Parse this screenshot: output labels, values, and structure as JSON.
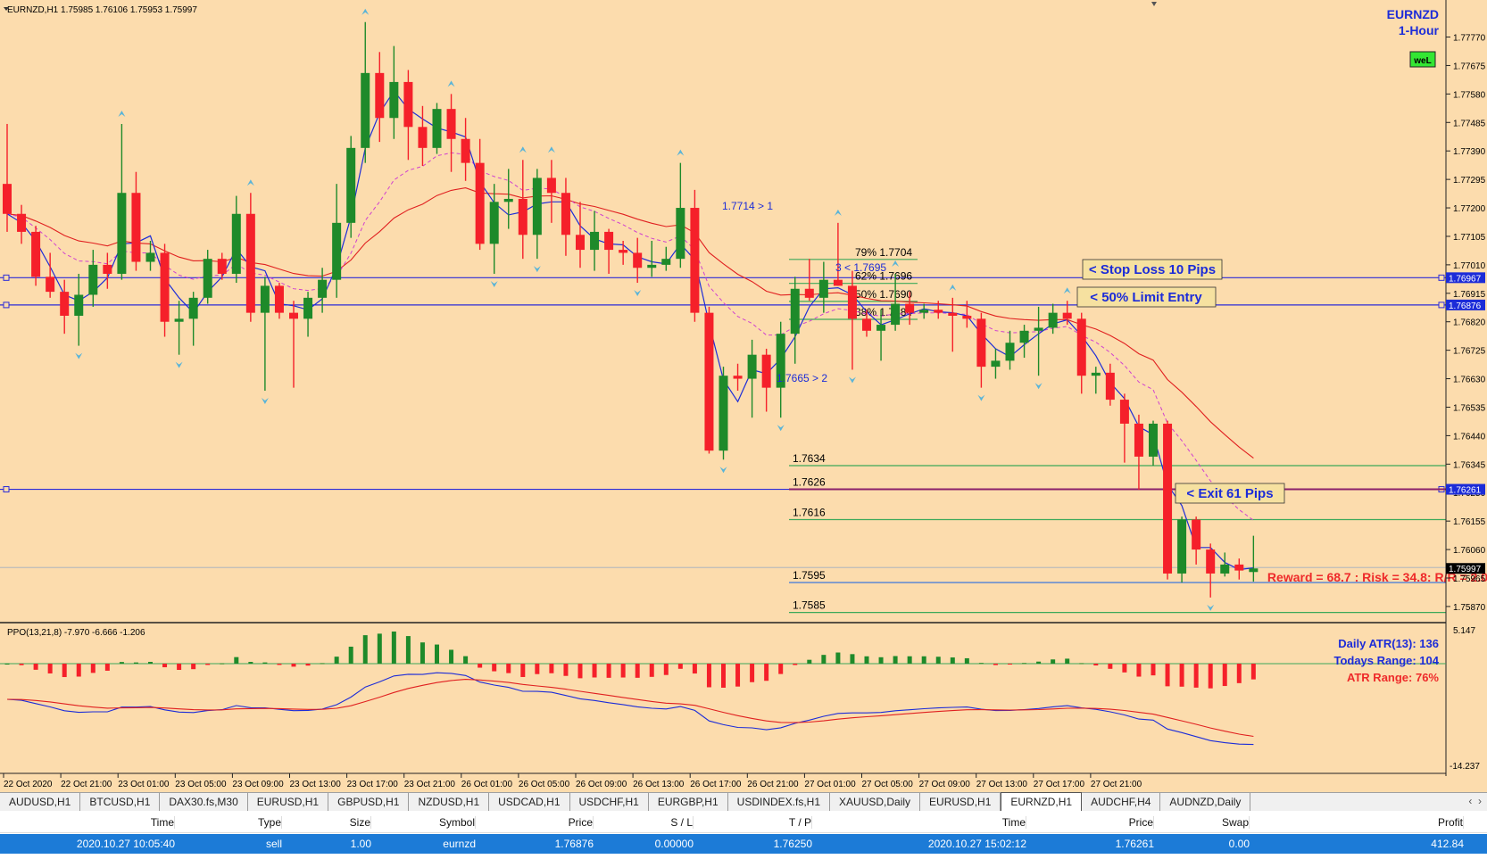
{
  "header": {
    "symbol_info": "EURNZD,H1  1.75985 1.76106 1.75953 1.75997",
    "symbol": "EURNZD",
    "timeframe": "1-Hour",
    "badge": "weL"
  },
  "price_axis": [
    "1.77770",
    "1.77675",
    "1.77580",
    "1.77485",
    "1.77390",
    "1.77295",
    "1.77200",
    "1.77105",
    "1.77010",
    "1.76915",
    "1.76820",
    "1.76725",
    "1.76630",
    "1.76535",
    "1.76440",
    "1.76345",
    "1.76250",
    "1.76155",
    "1.76060",
    "1.75965",
    "1.75870"
  ],
  "price_tags": [
    {
      "label": "1.76967",
      "price": 1.76967,
      "color": "#1c2cd8"
    },
    {
      "label": "1.76876",
      "price": 1.76876,
      "color": "#1c2cd8"
    },
    {
      "label": "1.76261",
      "price": 1.76261,
      "color": "#1c2cd8"
    },
    {
      "label": "1.75997",
      "price": 1.75997,
      "color": "#000000"
    }
  ],
  "horizontal_lines": [
    {
      "price": 1.76967,
      "color": "#2b2bd8",
      "style": "solid",
      "full": true
    },
    {
      "price": 1.76876,
      "color": "#2b2bd8",
      "style": "solid",
      "full": true
    },
    {
      "price": 1.76261,
      "color": "#2b2bd8",
      "style": "solid",
      "full": true
    },
    {
      "price": 1.76,
      "color": "#bbbbbb",
      "style": "solid",
      "full": true
    }
  ],
  "annotations": {
    "stop_loss": "< Stop Loss 10 Pips",
    "limit_entry": "< 50% Limit Entry",
    "exit": "< Exit 61 Pips",
    "reward_risk": "Reward = 68.7 : Risk = 34.8: R/R = 2.0",
    "high_label": "1.7714 > 1",
    "low_label": "1.7665 > 2",
    "swing_label": "3 < 1.7695"
  },
  "fib_levels": [
    {
      "label": "79% 1.7704",
      "price": 1.7704
    },
    {
      "label": "62% 1.7696",
      "price": 1.7696
    },
    {
      "label": "50% 1.7690",
      "price": 1.769
    },
    {
      "label": "38% 1.7684",
      "price": 1.7684
    }
  ],
  "targets": [
    {
      "label": "1.7634",
      "price": 1.7634,
      "color": "#3da95a"
    },
    {
      "label": "1.7626",
      "price": 1.76261,
      "color": "#8a1f6a"
    },
    {
      "label": "1.7616",
      "price": 1.7616,
      "color": "#3da95a"
    },
    {
      "label": "1.7595",
      "price": 1.7595,
      "color": "#2a6be0"
    },
    {
      "label": "1.7585",
      "price": 1.7585,
      "color": "#3da95a"
    }
  ],
  "indicator": {
    "title": "PPO(13,21,8) -7.970 -6.666 -1.206",
    "axis_top": "5.147",
    "axis_bottom": "-14.237",
    "daily_atr": "Daily ATR(13): 136",
    "todays_range": "Todays Range: 104",
    "atr_range": "ATR Range: 76%"
  },
  "time_axis": [
    "22 Oct 2020",
    "22 Oct 21:00",
    "23 Oct 01:00",
    "23 Oct 05:00",
    "23 Oct 09:00",
    "23 Oct 13:00",
    "23 Oct 17:00",
    "23 Oct 21:00",
    "26 Oct 01:00",
    "26 Oct 05:00",
    "26 Oct 09:00",
    "26 Oct 13:00",
    "26 Oct 17:00",
    "26 Oct 21:00",
    "27 Oct 01:00",
    "27 Oct 05:00",
    "27 Oct 09:00",
    "27 Oct 13:00",
    "27 Oct 17:00",
    "27 Oct 21:00"
  ],
  "tabs": [
    "AUDUSD,H1",
    "BTCUSD,H1",
    "DAX30.fs,M30",
    "EURUSD,H1",
    "GBPUSD,H1",
    "NZDUSD,H1",
    "USDCAD,H1",
    "USDCHF,H1",
    "EURGBP,H1",
    "USDINDEX.fs,H1",
    "XAUUSD,Daily",
    "EURUSD,H1",
    "EURNZD,H1",
    "AUDCHF,H4",
    "AUDNZD,Daily"
  ],
  "active_tab": "EURNZD,H1",
  "trade_table": {
    "headers": [
      "Time",
      "Type",
      "Size",
      "Symbol",
      "Price",
      "S / L",
      "T / P",
      "Time",
      "Price",
      "Swap",
      "Profit"
    ],
    "row": [
      "2020.10.27 10:05:40",
      "sell",
      "1.00",
      "eurnzd",
      "1.76876",
      "0.00000",
      "1.76250",
      "2020.10.27 15:02:12",
      "1.76261",
      "0.00",
      "412.84"
    ]
  },
  "colors": {
    "bull": "#1e8a2a",
    "bear": "#f5202a",
    "background": "#fcdcad",
    "ma_fast": "#1c2cd8",
    "ma_slow": "#e02020",
    "ma_dash": "#d040d0"
  },
  "chart_data": {
    "type": "candlestick",
    "symbol": "EURNZD",
    "timeframe": "H1",
    "ylim": [
      1.7584,
      1.7784
    ],
    "candles": [
      [
        1.7728,
        1.7748,
        1.7712,
        1.7718
      ],
      [
        1.7718,
        1.7721,
        1.7708,
        1.7712
      ],
      [
        1.7712,
        1.7714,
        1.7694,
        1.7697
      ],
      [
        1.7697,
        1.7705,
        1.769,
        1.7692
      ],
      [
        1.7692,
        1.7696,
        1.7678,
        1.7684
      ],
      [
        1.7684,
        1.7698,
        1.7674,
        1.7691
      ],
      [
        1.7691,
        1.7706,
        1.7687,
        1.7701
      ],
      [
        1.7701,
        1.7705,
        1.7693,
        1.7698
      ],
      [
        1.7698,
        1.7748,
        1.7696,
        1.7725
      ],
      [
        1.7725,
        1.7732,
        1.7699,
        1.7702
      ],
      [
        1.7702,
        1.7709,
        1.7699,
        1.7705
      ],
      [
        1.7705,
        1.7708,
        1.7677,
        1.7682
      ],
      [
        1.7682,
        1.7689,
        1.7671,
        1.7683
      ],
      [
        1.7683,
        1.7692,
        1.7674,
        1.769
      ],
      [
        1.769,
        1.7706,
        1.7688,
        1.7703
      ],
      [
        1.7703,
        1.7705,
        1.7696,
        1.7698
      ],
      [
        1.7698,
        1.7724,
        1.7695,
        1.7718
      ],
      [
        1.7718,
        1.7725,
        1.7682,
        1.7685
      ],
      [
        1.7685,
        1.7697,
        1.7659,
        1.7694
      ],
      [
        1.7694,
        1.7695,
        1.7683,
        1.7685
      ],
      [
        1.7685,
        1.7689,
        1.766,
        1.7683
      ],
      [
        1.7683,
        1.7692,
        1.7677,
        1.769
      ],
      [
        1.769,
        1.77,
        1.7685,
        1.7696
      ],
      [
        1.7696,
        1.7728,
        1.769,
        1.7715
      ],
      [
        1.7715,
        1.7744,
        1.771,
        1.774
      ],
      [
        1.774,
        1.7782,
        1.7735,
        1.7765
      ],
      [
        1.7765,
        1.7772,
        1.7742,
        1.775
      ],
      [
        1.775,
        1.7774,
        1.7743,
        1.7762
      ],
      [
        1.7762,
        1.7766,
        1.7736,
        1.7747
      ],
      [
        1.7747,
        1.7754,
        1.7734,
        1.774
      ],
      [
        1.774,
        1.7755,
        1.7738,
        1.7753
      ],
      [
        1.7753,
        1.7758,
        1.7732,
        1.7743
      ],
      [
        1.7743,
        1.775,
        1.7729,
        1.7735
      ],
      [
        1.7735,
        1.7743,
        1.7706,
        1.7708
      ],
      [
        1.7708,
        1.7728,
        1.7698,
        1.7722
      ],
      [
        1.7722,
        1.7733,
        1.7713,
        1.7723
      ],
      [
        1.7723,
        1.7736,
        1.7703,
        1.7711
      ],
      [
        1.7711,
        1.7733,
        1.7703,
        1.773
      ],
      [
        1.773,
        1.7736,
        1.7715,
        1.7725
      ],
      [
        1.7725,
        1.773,
        1.7704,
        1.7711
      ],
      [
        1.7711,
        1.7722,
        1.77,
        1.7706
      ],
      [
        1.7706,
        1.7719,
        1.7699,
        1.7712
      ],
      [
        1.7712,
        1.7713,
        1.7698,
        1.7706
      ],
      [
        1.7706,
        1.7709,
        1.7701,
        1.7705
      ],
      [
        1.7705,
        1.771,
        1.7695,
        1.77
      ],
      [
        1.77,
        1.7709,
        1.7697,
        1.7701
      ],
      [
        1.7701,
        1.7707,
        1.7699,
        1.7703
      ],
      [
        1.7703,
        1.7735,
        1.77,
        1.772
      ],
      [
        1.772,
        1.7726,
        1.7682,
        1.7685
      ],
      [
        1.7685,
        1.7687,
        1.7638,
        1.7639
      ],
      [
        1.7639,
        1.7667,
        1.7636,
        1.7664
      ],
      [
        1.7664,
        1.7668,
        1.7659,
        1.7663
      ],
      [
        1.7663,
        1.7676,
        1.765,
        1.7671
      ],
      [
        1.7671,
        1.7673,
        1.7652,
        1.766
      ],
      [
        1.766,
        1.7682,
        1.765,
        1.7678
      ],
      [
        1.7678,
        1.7697,
        1.7668,
        1.7693
      ],
      [
        1.7693,
        1.7703,
        1.7689,
        1.769
      ],
      [
        1.769,
        1.7702,
        1.7685,
        1.7696
      ],
      [
        1.7696,
        1.7715,
        1.7694,
        1.7694
      ],
      [
        1.7694,
        1.7699,
        1.7666,
        1.7683
      ],
      [
        1.7683,
        1.7686,
        1.7677,
        1.7679
      ],
      [
        1.7679,
        1.7686,
        1.7669,
        1.7681
      ],
      [
        1.7681,
        1.7698,
        1.7679,
        1.7688
      ],
      [
        1.7688,
        1.7692,
        1.7681,
        1.7685
      ],
      [
        1.7685,
        1.7688,
        1.7683,
        1.7686
      ],
      [
        1.7686,
        1.7689,
        1.7683,
        1.7685
      ],
      [
        1.7685,
        1.769,
        1.7672,
        1.7684
      ],
      [
        1.7684,
        1.7689,
        1.768,
        1.7683
      ],
      [
        1.7683,
        1.7685,
        1.766,
        1.7667
      ],
      [
        1.7667,
        1.7673,
        1.7663,
        1.7669
      ],
      [
        1.7669,
        1.7679,
        1.7666,
        1.7675
      ],
      [
        1.7675,
        1.7681,
        1.767,
        1.7679
      ],
      [
        1.7679,
        1.7687,
        1.7664,
        1.768
      ],
      [
        1.768,
        1.7688,
        1.7678,
        1.7685
      ],
      [
        1.7685,
        1.7689,
        1.7681,
        1.7683
      ],
      [
        1.7683,
        1.7685,
        1.7658,
        1.7664
      ],
      [
        1.7664,
        1.7667,
        1.7658,
        1.7665
      ],
      [
        1.7665,
        1.7668,
        1.7654,
        1.7656
      ],
      [
        1.7656,
        1.7658,
        1.7635,
        1.7648
      ],
      [
        1.7648,
        1.7651,
        1.7626,
        1.7637
      ],
      [
        1.7637,
        1.7649,
        1.7634,
        1.7648
      ],
      [
        1.7648,
        1.7649,
        1.7596,
        1.7598
      ],
      [
        1.7598,
        1.7617,
        1.7595,
        1.7616
      ],
      [
        1.7616,
        1.7617,
        1.7601,
        1.7606
      ],
      [
        1.7606,
        1.7608,
        1.759,
        1.7598
      ],
      [
        1.7598,
        1.7605,
        1.7597,
        1.7601
      ],
      [
        1.7601,
        1.7603,
        1.7596,
        1.7599
      ],
      [
        1.75985,
        1.76106,
        1.75953,
        1.75997
      ]
    ],
    "title": "",
    "xlabel": "",
    "ylabel": ""
  }
}
